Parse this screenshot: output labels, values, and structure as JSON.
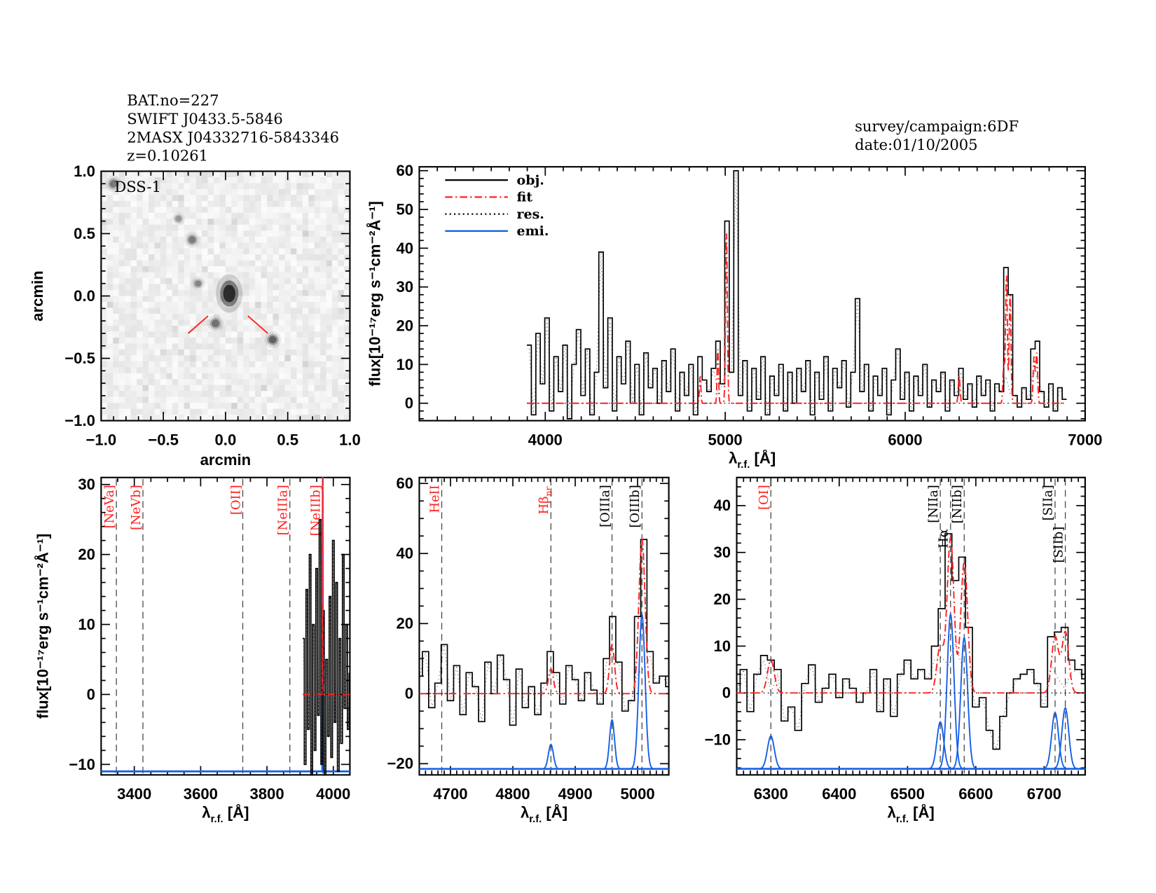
{
  "header": {
    "lines": [
      "BAT.no=227",
      "SWIFT J0433.5-5846",
      "2MASX J04332716-5843346",
      "z=0.10261"
    ],
    "survey": "survey/campaign:6DF",
    "date": "date:01/10/2005"
  },
  "colors": {
    "obj": "#000000",
    "fit": "#ff2020",
    "res": "#000000",
    "emi": "#1560e8",
    "red_label": "#ff2020",
    "black_label": "#000000"
  },
  "chart_data": [
    {
      "type": "image",
      "title": "DSS-1",
      "xlabel": "arcmin",
      "ylabel": "arcmin",
      "xlim": [
        -1.0,
        1.0
      ],
      "ylim": [
        -1.0,
        1.0
      ],
      "xticks": [
        "−1.0",
        "−0.5",
        "0.0",
        "0.5",
        "1.0"
      ],
      "xtick_values": [
        -1.0,
        -0.5,
        0.0,
        0.5,
        1.0
      ],
      "yticks": [
        "−1.0",
        "−0.5",
        "0.0",
        "0.5",
        "1.0"
      ],
      "ytick_values": [
        -1.0,
        -0.5,
        0.0,
        0.5,
        1.0
      ],
      "sources": [
        {
          "x": 0.03,
          "y": 0.02,
          "strength": 1.0,
          "size": 0.07
        },
        {
          "x": -0.9,
          "y": 0.9,
          "strength": 0.5,
          "size": 0.03
        },
        {
          "x": -0.38,
          "y": 0.62,
          "strength": 0.35,
          "size": 0.025
        },
        {
          "x": -0.27,
          "y": 0.45,
          "strength": 0.45,
          "size": 0.03
        },
        {
          "x": -0.22,
          "y": 0.1,
          "strength": 0.45,
          "size": 0.025
        },
        {
          "x": -0.08,
          "y": -0.22,
          "strength": 0.55,
          "size": 0.03
        },
        {
          "x": 0.38,
          "y": -0.35,
          "strength": 0.6,
          "size": 0.03
        }
      ],
      "marker_color": "#ff2020"
    },
    {
      "type": "line",
      "xlabel": {
        "symbol": "λ",
        "sub": "r.f.",
        "unit": " [Å]"
      },
      "ylabel": "flux[10⁻¹⁷erg s⁻¹cm⁻²Å⁻¹]",
      "xlim": [
        3300,
        7000
      ],
      "ylim": [
        -4.5,
        61
      ],
      "xticks": [
        "4000",
        "5000",
        "6000",
        "7000"
      ],
      "xtick_values": [
        4000,
        5000,
        6000,
        7000
      ],
      "yticks": [
        "0",
        "10",
        "20",
        "30",
        "40",
        "50",
        "60"
      ],
      "ytick_values": [
        0,
        10,
        20,
        30,
        40,
        50,
        60
      ],
      "legend": {
        "position": "top-left",
        "entries": [
          {
            "label": "obj.",
            "style": "solid",
            "color": "#000000"
          },
          {
            "label": "fit",
            "style": "dash-dot",
            "color": "#ff2020"
          },
          {
            "label": "res.",
            "style": "dotted",
            "color": "#000000"
          },
          {
            "label": "emi.",
            "style": "solid",
            "color": "#1560e8"
          }
        ]
      },
      "obs": {
        "start": 3910,
        "step": 25,
        "flux": [
          15,
          -3,
          18,
          5,
          22,
          -2,
          12,
          3,
          15,
          -4,
          10,
          19,
          2,
          14,
          -3,
          8,
          39,
          4,
          22,
          -2,
          12,
          5,
          16,
          0,
          10,
          -3,
          13,
          4,
          9,
          0,
          11,
          3,
          14,
          -2,
          8,
          2,
          10,
          -3,
          12,
          6,
          3,
          9,
          16,
          5,
          47,
          8,
          60,
          2,
          11,
          -2,
          9,
          1,
          12,
          -3,
          7,
          2,
          10,
          -2,
          8,
          0,
          9,
          3,
          11,
          -3,
          8,
          1,
          12,
          -2,
          9,
          4,
          11,
          -1,
          8,
          27,
          3,
          10,
          -2,
          7,
          2,
          9,
          -3,
          6,
          14,
          1,
          8,
          -2,
          7,
          2,
          10,
          -1,
          6,
          3,
          8,
          -2,
          6,
          2,
          9,
          1,
          5,
          -1,
          7,
          2,
          6,
          -2,
          5,
          3,
          35,
          28,
          2,
          -1,
          4,
          1,
          14,
          16,
          3,
          -1,
          5,
          -2,
          4,
          1
        ]
      },
      "components": [
        {
          "line": "Hβ",
          "center": 4861,
          "amp": 7,
          "sigma": 4
        },
        {
          "line": "[OIIIa]",
          "center": 4959,
          "amp": 14,
          "sigma": 4
        },
        {
          "line": "[OIIIb]",
          "center": 5007,
          "amp": 44,
          "sigma": 5
        },
        {
          "line": "[OI]",
          "center": 6300,
          "amp": 7,
          "sigma": 5
        },
        {
          "line": "[NIIa]",
          "center": 6548,
          "amp": 10,
          "sigma": 5
        },
        {
          "line": "Hα",
          "center": 6563,
          "amp": 33,
          "sigma": 5
        },
        {
          "line": "[NIIb]",
          "center": 6583,
          "amp": 28,
          "sigma": 5
        },
        {
          "line": "[SIIa]",
          "center": 6716,
          "amp": 12,
          "sigma": 5
        },
        {
          "line": "[SIIb]",
          "center": 6731,
          "amp": 13,
          "sigma": 5
        }
      ]
    },
    {
      "type": "line",
      "xlabel": {
        "symbol": "λ",
        "sub": "r.f.",
        "unit": " [Å]"
      },
      "ylabel": "flux[10⁻¹⁷erg s⁻¹cm⁻²Å⁻¹]",
      "xlim": [
        3300,
        4050
      ],
      "ylim": [
        -11.5,
        31
      ],
      "xticks": [
        "3400",
        "3600",
        "3800",
        "4000"
      ],
      "xtick_values": [
        3400,
        3600,
        3800,
        4000
      ],
      "yticks": [
        "−10",
        "0",
        "10",
        "20",
        "30"
      ],
      "ytick_values": [
        -10,
        0,
        10,
        20,
        30
      ],
      "lines": [
        {
          "label": "[NeVa]",
          "wavelength": 3346,
          "color": "#ff2020"
        },
        {
          "label": "[NeVb]",
          "wavelength": 3426,
          "color": "#ff2020"
        },
        {
          "label": "[OII]",
          "wavelength": 3727,
          "color": "#ff2020"
        },
        {
          "label": "[NeIIIa]",
          "wavelength": 3869,
          "color": "#ff2020"
        },
        {
          "label": "[NeIIIb]",
          "wavelength": 3968,
          "color": "#ff2020"
        }
      ],
      "emi_offset": -11,
      "obs": {
        "start": 3910,
        "step": 5,
        "flux": [
          8,
          -10,
          15,
          -5,
          20,
          -12,
          10,
          -8,
          18,
          -3,
          25,
          -10,
          12,
          -15,
          5,
          -6,
          14,
          -9,
          22,
          -4,
          16,
          -11,
          8,
          -7,
          20,
          -2,
          10,
          -5,
          3
        ]
      },
      "components": [
        {
          "line": "[NeIIIb]",
          "center": 3968,
          "amp": 60,
          "sigma": 0.6
        }
      ]
    },
    {
      "type": "line",
      "xlabel": {
        "symbol": "λ",
        "sub": "r.f.",
        "unit": " [Å]"
      },
      "xlim": [
        4650,
        5050
      ],
      "ylim": [
        -23.2,
        61.7
      ],
      "xticks": [
        "4700",
        "4800",
        "4900",
        "5000"
      ],
      "xtick_values": [
        4700,
        4800,
        4900,
        5000
      ],
      "yticks": [
        "−20",
        "0",
        "20",
        "40",
        "60"
      ],
      "ytick_values": [
        -20,
        0,
        20,
        40,
        60
      ],
      "lines": [
        {
          "label": "HeII",
          "wavelength": 4686,
          "color": "#ff2020"
        },
        {
          "label": "Hβ",
          "sub": "nr",
          "wavelength": 4861,
          "color": "#ff2020"
        },
        {
          "label": "[OIIIa]",
          "wavelength": 4959,
          "color": "#000000"
        },
        {
          "label": "[OIIIb]",
          "wavelength": 5007,
          "color": "#000000"
        }
      ],
      "emi_offset": -21.5,
      "obs": {
        "start": 4650,
        "step": 10,
        "flux": [
          5,
          12,
          -4,
          3,
          14,
          -2,
          8,
          -6,
          6,
          2,
          -8,
          9,
          0,
          11,
          4,
          -9,
          7,
          -4,
          2,
          -6,
          3,
          12,
          6,
          -3,
          8,
          4,
          -2,
          6,
          1,
          -3,
          10,
          22,
          9,
          -5,
          -2,
          22,
          44,
          12,
          3,
          5,
          2
        ]
      },
      "components": [
        {
          "line": "Hβ",
          "center": 4861,
          "amp": 7,
          "sigma": 4
        },
        {
          "line": "[OIIIa]",
          "center": 4959,
          "amp": 14,
          "sigma": 4
        },
        {
          "line": "[OIIIb]",
          "center": 5007,
          "amp": 44,
          "sigma": 5
        }
      ]
    },
    {
      "type": "line",
      "xlabel": {
        "symbol": "λ",
        "sub": "r.f.",
        "unit": " [Å]"
      },
      "xlim": [
        6250,
        6760
      ],
      "ylim": [
        -17.5,
        46
      ],
      "xticks": [
        "6300",
        "6400",
        "6500",
        "6600",
        "6700"
      ],
      "xtick_values": [
        6300,
        6400,
        6500,
        6600,
        6700
      ],
      "yticks": [
        "−10",
        "0",
        "10",
        "20",
        "30",
        "40"
      ],
      "ytick_values": [
        -10,
        0,
        10,
        20,
        30,
        40
      ],
      "lines": [
        {
          "label": "[OI]",
          "wavelength": 6300,
          "color": "#ff2020"
        },
        {
          "label": "[NIIa]",
          "wavelength": 6548,
          "color": "#000000"
        },
        {
          "label": "Hα",
          "wavelength": 6563,
          "color": "#000000"
        },
        {
          "label": "[NIIb]",
          "wavelength": 6583,
          "color": "#000000"
        },
        {
          "label": "[SIIa]",
          "wavelength": 6716,
          "color": "#000000"
        },
        {
          "label": "[SIIb]",
          "wavelength": 6731,
          "color": "#000000"
        }
      ],
      "emi_offset": -16.2,
      "obs": {
        "start": 6250,
        "step": 10,
        "flux": [
          0,
          5,
          -4,
          4,
          8,
          7,
          5,
          -6,
          -3,
          -8,
          2,
          6,
          -2,
          1,
          4,
          -1,
          3,
          1,
          -2,
          0,
          5,
          -4,
          3,
          -5,
          4,
          7,
          3,
          5,
          3,
          10,
          18,
          34,
          24,
          29,
          14,
          -3,
          -1,
          -8,
          -12,
          -5,
          0,
          3,
          4,
          5,
          2,
          -3,
          12,
          13,
          14,
          7,
          5,
          3
        ]
      },
      "components": [
        {
          "line": "[OI]",
          "center": 6300,
          "amp": 7,
          "sigma": 5
        },
        {
          "line": "[NIIa]",
          "center": 6548,
          "amp": 10,
          "sigma": 5
        },
        {
          "line": "Hα",
          "center": 6563,
          "amp": 33,
          "sigma": 5
        },
        {
          "line": "[NIIb]",
          "center": 6583,
          "amp": 28,
          "sigma": 5
        },
        {
          "line": "[SIIa]",
          "center": 6716,
          "amp": 12,
          "sigma": 5
        },
        {
          "line": "[SIIb]",
          "center": 6731,
          "amp": 13,
          "sigma": 5
        }
      ]
    }
  ]
}
